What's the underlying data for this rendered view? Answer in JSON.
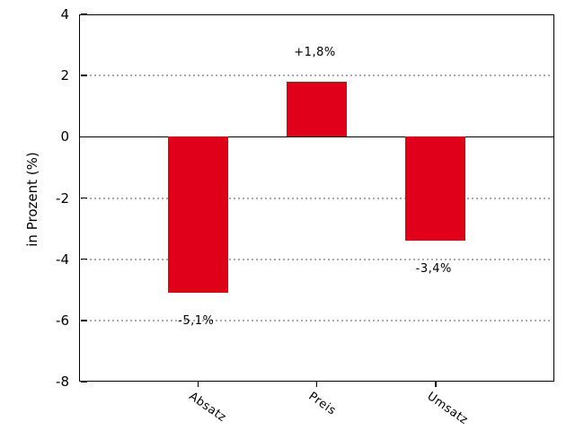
{
  "chart_data": {
    "type": "bar",
    "title": "",
    "categories": [
      "Absatz",
      "Preis",
      "Umsatz"
    ],
    "values": [
      -5.1,
      1.8,
      -3.4
    ],
    "value_labels": [
      "-5,1%",
      "+1,8%",
      "-3,4%"
    ],
    "xlabel": "",
    "ylabel": "in Prozent (%)",
    "ylim": [
      -8,
      4
    ],
    "yticks": [
      4,
      2,
      0,
      -2,
      -4,
      -6,
      -8
    ],
    "gridlines": [
      2,
      -2,
      -4,
      -6
    ],
    "grid_style": "dotted",
    "legend": "none",
    "zero_line": true,
    "bar_color": "#e00019",
    "grid_color": "#ababab",
    "axis_color": "#000000",
    "text_color": "#000000",
    "background": "#ffffff"
  }
}
